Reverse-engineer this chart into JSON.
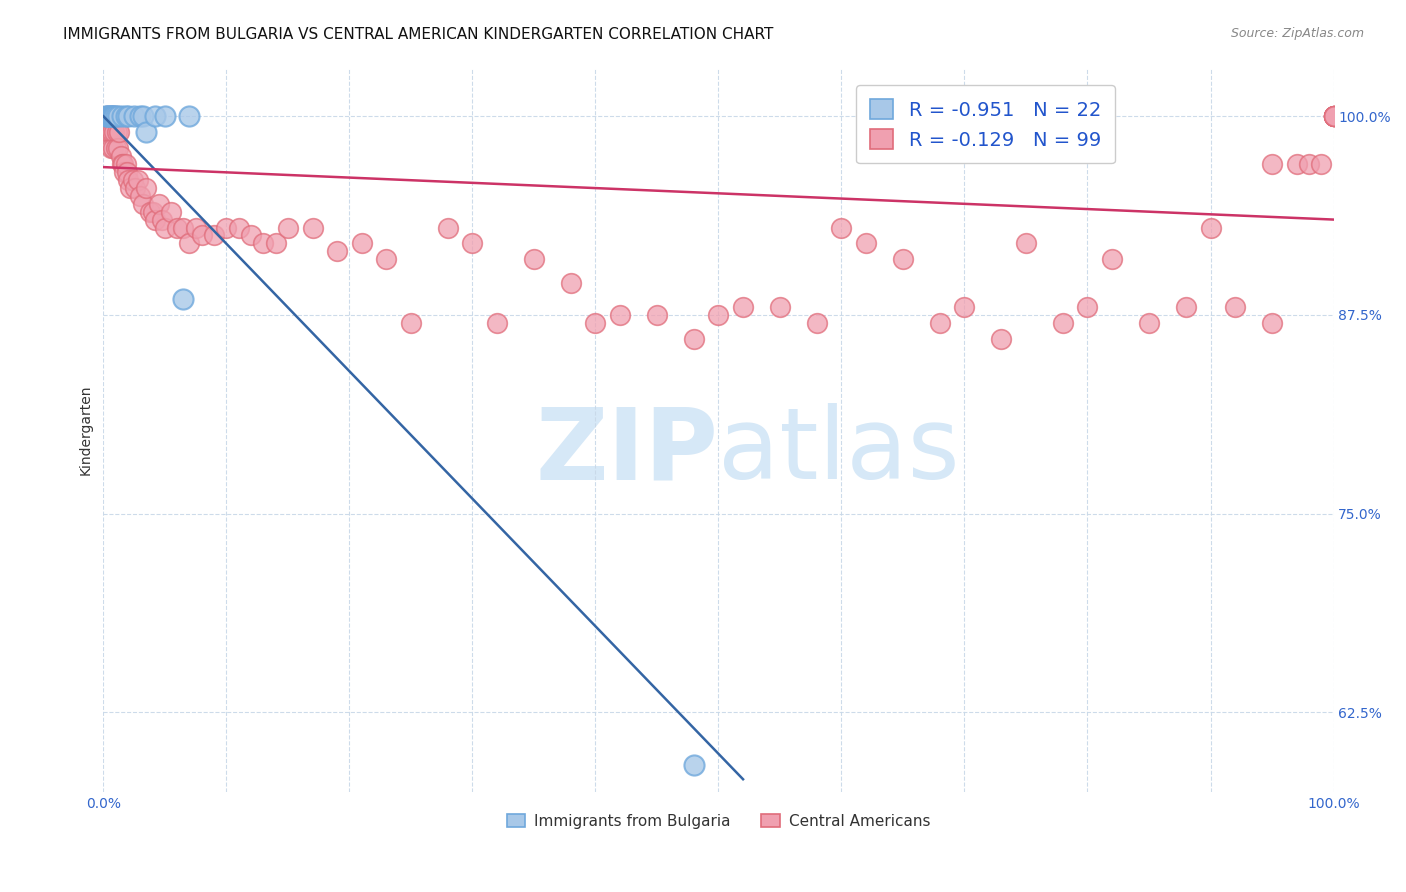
{
  "title": "IMMIGRANTS FROM BULGARIA VS CENTRAL AMERICAN KINDERGARTEN CORRELATION CHART",
  "source": "Source: ZipAtlas.com",
  "ylabel": "Kindergarten",
  "y_tick_positions": [
    0.625,
    0.75,
    0.875,
    1.0
  ],
  "y_tick_labels": [
    "62.5%",
    "75.0%",
    "87.5%",
    "100.0%"
  ],
  "legend_r_bulgaria": "-0.951",
  "legend_n_bulgaria": "22",
  "legend_r_central": "-0.129",
  "legend_n_central": "99",
  "color_bulgaria_fill": "#a8c8e8",
  "color_bulgaria_edge": "#6fa8dc",
  "color_central_fill": "#f0a0b0",
  "color_central_edge": "#e06c7a",
  "color_regression_bulgaria": "#3465a4",
  "color_regression_central": "#cc3366",
  "watermark_zip": "ZIP",
  "watermark_atlas": "atlas",
  "watermark_color": "#d6e8f7",
  "background_color": "#ffffff",
  "title_fontsize": 11,
  "source_fontsize": 9,
  "xlim": [
    0.0,
    1.0
  ],
  "ylim": [
    0.575,
    1.03
  ],
  "legend_text_color": "#2255cc",
  "grid_color": "#c8d8e8",
  "bulgaria_x": [
    0.002,
    0.003,
    0.004,
    0.005,
    0.006,
    0.007,
    0.008,
    0.009,
    0.01,
    0.012,
    0.015,
    0.018,
    0.02,
    0.025,
    0.03,
    0.032,
    0.035,
    0.042,
    0.05,
    0.065,
    0.07,
    0.48
  ],
  "bulgaria_y": [
    1.0,
    1.0,
    1.0,
    1.0,
    1.0,
    1.0,
    1.0,
    1.0,
    1.0,
    1.0,
    1.0,
    1.0,
    1.0,
    1.0,
    1.0,
    1.0,
    0.99,
    1.0,
    1.0,
    0.885,
    1.0,
    0.592
  ],
  "central_x": [
    0.002,
    0.003,
    0.004,
    0.004,
    0.005,
    0.005,
    0.006,
    0.006,
    0.007,
    0.007,
    0.008,
    0.008,
    0.009,
    0.009,
    0.01,
    0.01,
    0.011,
    0.012,
    0.012,
    0.013,
    0.014,
    0.015,
    0.016,
    0.017,
    0.018,
    0.019,
    0.02,
    0.022,
    0.024,
    0.026,
    0.028,
    0.03,
    0.032,
    0.035,
    0.038,
    0.04,
    0.042,
    0.045,
    0.048,
    0.05,
    0.055,
    0.06,
    0.065,
    0.07,
    0.075,
    0.08,
    0.09,
    0.1,
    0.11,
    0.12,
    0.13,
    0.14,
    0.15,
    0.17,
    0.19,
    0.21,
    0.23,
    0.25,
    0.28,
    0.3,
    0.32,
    0.35,
    0.38,
    0.4,
    0.42,
    0.45,
    0.48,
    0.5,
    0.52,
    0.55,
    0.58,
    0.6,
    0.62,
    0.65,
    0.68,
    0.7,
    0.73,
    0.75,
    0.78,
    0.8,
    0.82,
    0.85,
    0.88,
    0.9,
    0.92,
    0.95,
    0.95,
    0.97,
    0.98,
    0.99,
    1.0,
    1.0,
    1.0,
    1.0,
    1.0,
    1.0,
    1.0,
    1.0,
    1.0
  ],
  "central_y": [
    1.0,
    1.0,
    0.99,
    1.0,
    0.99,
    1.0,
    1.0,
    0.98,
    0.99,
    1.0,
    1.0,
    0.98,
    1.0,
    0.99,
    1.0,
    0.98,
    0.99,
    1.0,
    0.98,
    0.99,
    0.975,
    0.97,
    0.97,
    0.965,
    0.97,
    0.965,
    0.96,
    0.955,
    0.96,
    0.955,
    0.96,
    0.95,
    0.945,
    0.955,
    0.94,
    0.94,
    0.935,
    0.945,
    0.935,
    0.93,
    0.94,
    0.93,
    0.93,
    0.92,
    0.93,
    0.925,
    0.925,
    0.93,
    0.93,
    0.925,
    0.92,
    0.92,
    0.93,
    0.93,
    0.915,
    0.92,
    0.91,
    0.87,
    0.93,
    0.92,
    0.87,
    0.91,
    0.895,
    0.87,
    0.875,
    0.875,
    0.86,
    0.875,
    0.88,
    0.88,
    0.87,
    0.93,
    0.92,
    0.91,
    0.87,
    0.88,
    0.86,
    0.92,
    0.87,
    0.88,
    0.91,
    0.87,
    0.88,
    0.93,
    0.88,
    0.87,
    0.97,
    0.97,
    0.97,
    0.97,
    1.0,
    1.0,
    1.0,
    1.0,
    1.0,
    1.0,
    1.0,
    1.0,
    1.0
  ]
}
